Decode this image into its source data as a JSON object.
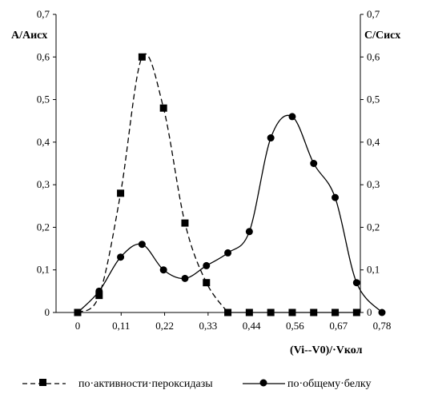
{
  "chart_data": {
    "type": "line",
    "y_left_label": "A/Aисх",
    "y_right_label": "C/Cисх",
    "xlabel": "(Vi‑‑V0)/·Vкол",
    "x_ticks": [
      "0",
      "0,11",
      "0,22",
      "0,33",
      "0,44",
      "0,56",
      "0,67",
      "0,78"
    ],
    "y_ticks": [
      "0",
      "0,1",
      "0,2",
      "0,3",
      "0,4",
      "0,5",
      "0,6",
      "0,7"
    ],
    "xlim": [
      0,
      0.78
    ],
    "ylim": [
      0,
      0.7
    ],
    "grid": false,
    "legend_position": "bottom",
    "series": [
      {
        "name": "по·активности·пероксидазы",
        "marker": "square",
        "line_style": "dashed",
        "color": "#000000",
        "x": [
          0,
          0.055,
          0.11,
          0.165,
          0.22,
          0.275,
          0.33,
          0.385,
          0.44,
          0.495,
          0.55,
          0.605,
          0.66,
          0.715
        ],
        "y": [
          0,
          0.04,
          0.28,
          0.6,
          0.48,
          0.21,
          0.07,
          0,
          0,
          0,
          0,
          0,
          0,
          0
        ]
      },
      {
        "name": "по·общему·белку",
        "marker": "circle",
        "line_style": "solid",
        "color": "#000000",
        "x": [
          0,
          0.055,
          0.11,
          0.165,
          0.22,
          0.275,
          0.33,
          0.385,
          0.44,
          0.495,
          0.55,
          0.605,
          0.66,
          0.715,
          0.78
        ],
        "y": [
          0,
          0.05,
          0.13,
          0.16,
          0.1,
          0.08,
          0.11,
          0.14,
          0.19,
          0.41,
          0.46,
          0.35,
          0.27,
          0.07,
          0
        ]
      }
    ]
  }
}
